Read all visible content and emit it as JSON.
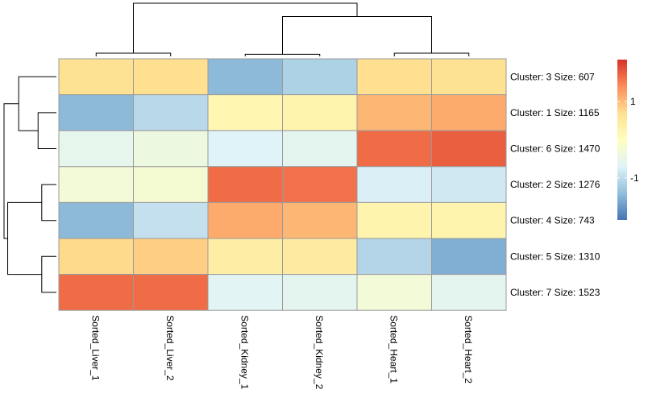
{
  "chart_data": {
    "type": "heatmap",
    "columns": [
      "Sorted_Liver_1",
      "Sorted_Liver_2",
      "Sorted_Kidney_1",
      "Sorted_Kidney_2",
      "Sorted_Heart_1",
      "Sorted_Heart_2"
    ],
    "rows": [
      "Cluster: 3 Size: 607",
      "Cluster: 1 Size: 1165",
      "Cluster: 6 Size: 1470",
      "Cluster: 2 Size: 1276",
      "Cluster: 4 Size: 743",
      "Cluster: 5 Size: 1310",
      "Cluster: 7 Size: 1523"
    ],
    "values": [
      [
        0.65,
        0.7,
        -1.45,
        -1.15,
        0.7,
        0.65
      ],
      [
        -1.45,
        -1.05,
        0.2,
        0.25,
        1.05,
        1.15
      ],
      [
        -0.55,
        -0.4,
        -0.7,
        -0.6,
        1.65,
        1.75
      ],
      [
        -0.3,
        -0.25,
        1.65,
        1.6,
        -0.75,
        -0.85
      ],
      [
        -1.45,
        -0.95,
        1.15,
        1.05,
        0.25,
        0.25
      ],
      [
        0.75,
        0.85,
        0.4,
        0.45,
        -1.1,
        -1.55
      ],
      [
        1.65,
        1.65,
        -0.65,
        -0.6,
        -0.3,
        -0.6
      ]
    ],
    "color_scale": {
      "min": -2.1,
      "max": 2.1,
      "colors": [
        "#4575B4",
        "#91BFDB",
        "#E0F3F8",
        "#FFFFBF",
        "#FEE090",
        "#FC8D59",
        "#D73027"
      ]
    },
    "legend_ticks": [
      {
        "label": "1",
        "value": 1
      },
      {
        "label": "-1",
        "value": -1
      }
    ],
    "row_dendrogram": [
      {
        "a": 3,
        "b": 4,
        "h": 0.28
      },
      {
        "a": 5,
        "b": 6,
        "h": 0.28
      },
      {
        "a": 1,
        "b": 2,
        "h": 0.35
      },
      {
        "a": 0,
        "b": "n2",
        "h": 0.72
      },
      {
        "a": "n0",
        "b": "n1",
        "h": 0.93
      },
      {
        "a": "n3",
        "b": "n4",
        "h": 1.0
      }
    ],
    "col_dendrogram": [
      {
        "a": 0,
        "b": 1,
        "h": 0.06
      },
      {
        "a": 2,
        "b": 3,
        "h": 0.04
      },
      {
        "a": 4,
        "b": 5,
        "h": 0.06
      },
      {
        "a": "n1",
        "b": "n2",
        "h": 0.75
      },
      {
        "a": "n0",
        "b": "n3",
        "h": 1.0
      }
    ]
  }
}
